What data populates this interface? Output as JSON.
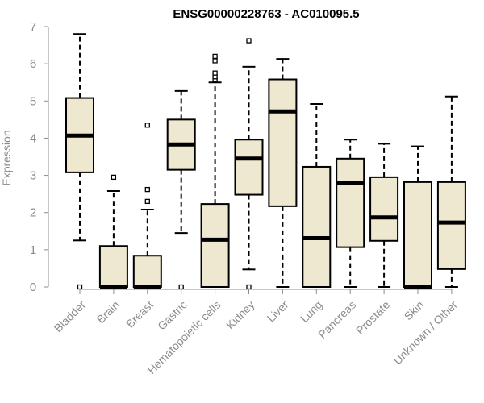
{
  "chart_data": {
    "type": "box",
    "title": "ENSG00000228763 - AC010095.5",
    "xlabel": "",
    "ylabel": "Expression",
    "ylim": [
      0,
      7
    ],
    "yticks": [
      0,
      1,
      2,
      3,
      4,
      5,
      6,
      7
    ],
    "categories": [
      "Bladder",
      "Brain",
      "Breast",
      "Gastric",
      "Hematopoietic cells",
      "Kidney",
      "Liver",
      "Lung",
      "Pancreas",
      "Prostate",
      "Skin",
      "Unknown / Other"
    ],
    "series": [
      {
        "category": "Bladder",
        "whisker_low": 1.25,
        "q1": 3.08,
        "median": 4.07,
        "q3": 5.08,
        "whisker_high": 6.8,
        "outliers": [
          0.0
        ]
      },
      {
        "category": "Brain",
        "whisker_low": 0.0,
        "q1": 0.0,
        "median": 0.0,
        "q3": 1.1,
        "whisker_high": 2.58,
        "outliers": [
          2.95
        ]
      },
      {
        "category": "Breast",
        "whisker_low": 0.0,
        "q1": 0.0,
        "median": 0.0,
        "q3": 0.84,
        "whisker_high": 2.08,
        "outliers": [
          2.3,
          2.62,
          4.35
        ]
      },
      {
        "category": "Gastric",
        "whisker_low": 1.45,
        "q1": 3.15,
        "median": 3.83,
        "q3": 4.5,
        "whisker_high": 5.27,
        "outliers": [
          0.0
        ]
      },
      {
        "category": "Hematopoietic cells",
        "whisker_low": 0.0,
        "q1": 0.0,
        "median": 1.27,
        "q3": 2.23,
        "whisker_high": 5.5,
        "outliers": [
          5.58,
          5.65,
          5.75,
          6.08,
          6.2
        ]
      },
      {
        "category": "Kidney",
        "whisker_low": 0.47,
        "q1": 2.48,
        "median": 3.45,
        "q3": 3.96,
        "whisker_high": 5.92,
        "outliers": [
          0.0,
          6.62
        ]
      },
      {
        "category": "Liver",
        "whisker_low": 0.0,
        "q1": 2.17,
        "median": 4.72,
        "q3": 5.58,
        "whisker_high": 6.13,
        "outliers": []
      },
      {
        "category": "Lung",
        "whisker_low": 0.0,
        "q1": 0.0,
        "median": 1.31,
        "q3": 3.23,
        "whisker_high": 4.92,
        "outliers": []
      },
      {
        "category": "Pancreas",
        "whisker_low": 0.0,
        "q1": 1.07,
        "median": 2.8,
        "q3": 3.45,
        "whisker_high": 3.96,
        "outliers": []
      },
      {
        "category": "Prostate",
        "whisker_low": 0.0,
        "q1": 1.24,
        "median": 1.87,
        "q3": 2.95,
        "whisker_high": 3.85,
        "outliers": []
      },
      {
        "category": "Skin",
        "whisker_low": 0.0,
        "q1": 0.0,
        "median": 0.0,
        "q3": 2.82,
        "whisker_high": 3.78,
        "outliers": []
      },
      {
        "category": "Unknown / Other",
        "whisker_low": 0.0,
        "q1": 0.48,
        "median": 1.73,
        "q3": 2.82,
        "whisker_high": 5.12,
        "outliers": []
      }
    ],
    "colors": {
      "box_fill": "#eee8d0",
      "stroke": "#000000",
      "axis_text": "#8c8c8c",
      "axis_line": "#8c8c8c"
    },
    "grid": false,
    "legend": "none"
  }
}
